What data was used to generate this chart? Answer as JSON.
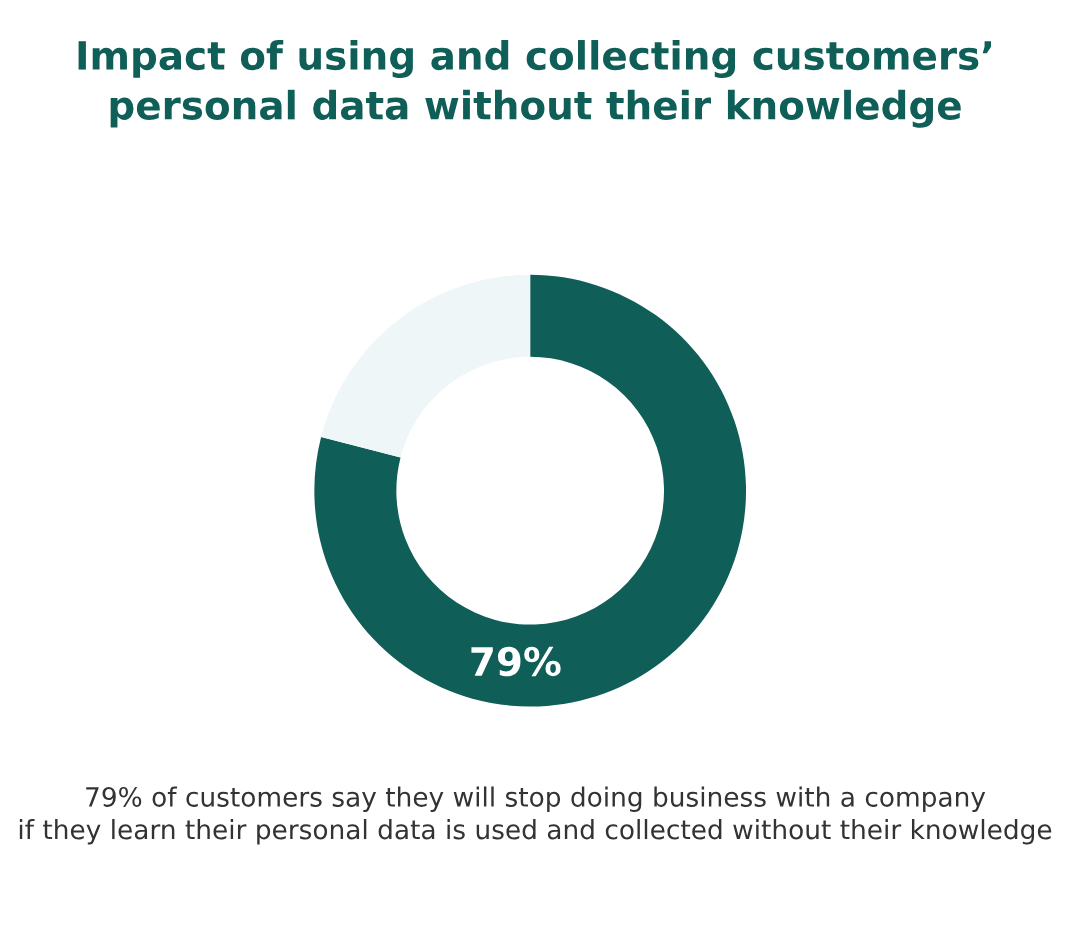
{
  "chart_data": {
    "type": "donut",
    "title": "Impact of using and collecting customers’\npersonal data without their knowledge",
    "categories": [
      null,
      null
    ],
    "values": [
      79,
      21
    ],
    "colors": [
      "#0f5e57",
      "#eef6f8"
    ],
    "value_labels": [
      "79%",
      null
    ],
    "annotations": [
      "79% of customers say they will stop doing business with a company\nif they learn their personal data is used and collected without their knowledge"
    ]
  }
}
